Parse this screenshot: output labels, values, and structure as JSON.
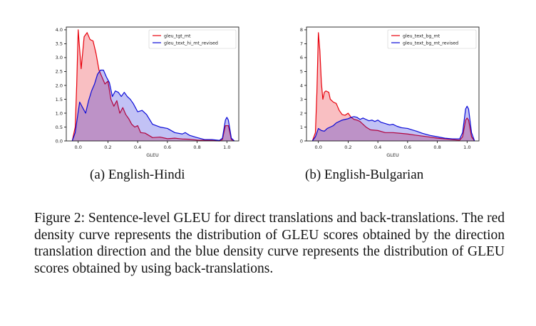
{
  "chart_data": [
    {
      "type": "area",
      "title": "",
      "xlabel": "GLEU",
      "ylabel": "",
      "xlim": [
        -0.08,
        1.08
      ],
      "ylim": [
        0,
        4.1
      ],
      "xticks": [
        0.0,
        0.2,
        0.4,
        0.6,
        0.8,
        1.0
      ],
      "xtick_labels": [
        "0.0",
        "0.2",
        "0.4",
        "0.6",
        "0.8",
        "1.0"
      ],
      "yticks": [
        0.0,
        0.5,
        1.0,
        1.5,
        2.0,
        2.5,
        3.0,
        3.5,
        4.0
      ],
      "ytick_labels": [
        "0.0",
        "0.5",
        "1.0",
        "1.5",
        "2.0",
        "2.5",
        "3.0",
        "3.5",
        "4.0"
      ],
      "grid": false,
      "legend_position": "top-right",
      "series": [
        {
          "name": "gleu_tgt_mt",
          "color": "#e8000b",
          "points": [
            [
              -0.04,
              0.0
            ],
            [
              -0.02,
              0.5
            ],
            [
              -0.01,
              2.0
            ],
            [
              0.0,
              4.0
            ],
            [
              0.02,
              2.6
            ],
            [
              0.04,
              3.75
            ],
            [
              0.06,
              3.9
            ],
            [
              0.08,
              3.65
            ],
            [
              0.1,
              3.6
            ],
            [
              0.12,
              3.15
            ],
            [
              0.14,
              2.55
            ],
            [
              0.16,
              2.3
            ],
            [
              0.18,
              2.05
            ],
            [
              0.2,
              2.15
            ],
            [
              0.22,
              1.5
            ],
            [
              0.24,
              1.25
            ],
            [
              0.26,
              1.45
            ],
            [
              0.28,
              1.0
            ],
            [
              0.3,
              1.2
            ],
            [
              0.32,
              0.95
            ],
            [
              0.34,
              0.8
            ],
            [
              0.36,
              0.6
            ],
            [
              0.38,
              0.5
            ],
            [
              0.4,
              0.55
            ],
            [
              0.42,
              0.3
            ],
            [
              0.45,
              0.28
            ],
            [
              0.5,
              0.12
            ],
            [
              0.55,
              0.14
            ],
            [
              0.6,
              0.08
            ],
            [
              0.65,
              0.1
            ],
            [
              0.7,
              0.07
            ],
            [
              0.75,
              0.06
            ],
            [
              0.8,
              0.03
            ],
            [
              0.9,
              0.02
            ],
            [
              0.95,
              0.0
            ],
            [
              0.97,
              0.05
            ],
            [
              0.99,
              0.55
            ],
            [
              1.0,
              0.55
            ],
            [
              1.01,
              0.55
            ],
            [
              1.03,
              0.05
            ],
            [
              1.05,
              0.0
            ]
          ]
        },
        {
          "name": "gleu_text_hi_mt_revised",
          "color": "#0a0ad8",
          "points": [
            [
              -0.04,
              0.0
            ],
            [
              -0.02,
              0.3
            ],
            [
              0.0,
              1.05
            ],
            [
              0.01,
              1.4
            ],
            [
              0.03,
              1.2
            ],
            [
              0.05,
              1.0
            ],
            [
              0.07,
              1.45
            ],
            [
              0.09,
              1.8
            ],
            [
              0.11,
              2.05
            ],
            [
              0.13,
              2.4
            ],
            [
              0.15,
              2.55
            ],
            [
              0.17,
              2.55
            ],
            [
              0.19,
              2.3
            ],
            [
              0.21,
              2.1
            ],
            [
              0.23,
              1.6
            ],
            [
              0.25,
              1.8
            ],
            [
              0.27,
              1.75
            ],
            [
              0.29,
              1.6
            ],
            [
              0.31,
              1.75
            ],
            [
              0.33,
              1.6
            ],
            [
              0.35,
              1.5
            ],
            [
              0.37,
              1.35
            ],
            [
              0.4,
              1.05
            ],
            [
              0.43,
              1.1
            ],
            [
              0.46,
              0.95
            ],
            [
              0.5,
              0.6
            ],
            [
              0.55,
              0.5
            ],
            [
              0.6,
              0.45
            ],
            [
              0.65,
              0.3
            ],
            [
              0.7,
              0.25
            ],
            [
              0.72,
              0.3
            ],
            [
              0.75,
              0.2
            ],
            [
              0.8,
              0.12
            ],
            [
              0.85,
              0.05
            ],
            [
              0.9,
              0.05
            ],
            [
              0.95,
              0.02
            ],
            [
              0.97,
              0.1
            ],
            [
              0.99,
              0.75
            ],
            [
              1.0,
              0.85
            ],
            [
              1.01,
              0.75
            ],
            [
              1.03,
              0.1
            ],
            [
              1.05,
              0.0
            ]
          ]
        }
      ]
    },
    {
      "type": "area",
      "title": "",
      "xlabel": "GLEU",
      "ylabel": "",
      "xlim": [
        -0.08,
        1.08
      ],
      "ylim": [
        0,
        8.2
      ],
      "xticks": [
        0.0,
        0.2,
        0.4,
        0.6,
        0.8,
        1.0
      ],
      "xtick_labels": [
        "0.0",
        "0.2",
        "0.4",
        "0.6",
        "0.8",
        "1.0"
      ],
      "yticks": [
        0,
        1,
        2,
        3,
        4,
        5,
        6,
        7,
        8
      ],
      "ytick_labels": [
        "0",
        "1",
        "2",
        "3",
        "4",
        "5",
        "6",
        "7",
        "8"
      ],
      "grid": false,
      "legend_position": "top-right",
      "series": [
        {
          "name": "gleu_text_bg_mt",
          "color": "#e8000b",
          "points": [
            [
              -0.04,
              0.0
            ],
            [
              -0.02,
              0.6
            ],
            [
              -0.01,
              3.5
            ],
            [
              0.0,
              7.8
            ],
            [
              0.01,
              6.5
            ],
            [
              0.02,
              4.2
            ],
            [
              0.03,
              3.0
            ],
            [
              0.04,
              3.5
            ],
            [
              0.05,
              3.6
            ],
            [
              0.07,
              3.5
            ],
            [
              0.08,
              3.0
            ],
            [
              0.1,
              2.8
            ],
            [
              0.12,
              2.7
            ],
            [
              0.14,
              2.2
            ],
            [
              0.16,
              1.9
            ],
            [
              0.18,
              1.85
            ],
            [
              0.2,
              2.0
            ],
            [
              0.22,
              1.7
            ],
            [
              0.24,
              1.55
            ],
            [
              0.26,
              1.5
            ],
            [
              0.28,
              1.4
            ],
            [
              0.3,
              1.2
            ],
            [
              0.32,
              1.0
            ],
            [
              0.35,
              0.8
            ],
            [
              0.4,
              0.75
            ],
            [
              0.45,
              0.6
            ],
            [
              0.5,
              0.6
            ],
            [
              0.55,
              0.55
            ],
            [
              0.6,
              0.5
            ],
            [
              0.65,
              0.42
            ],
            [
              0.7,
              0.35
            ],
            [
              0.75,
              0.28
            ],
            [
              0.8,
              0.2
            ],
            [
              0.85,
              0.15
            ],
            [
              0.9,
              0.1
            ],
            [
              0.95,
              0.05
            ],
            [
              0.97,
              0.3
            ],
            [
              0.99,
              1.5
            ],
            [
              1.0,
              1.65
            ],
            [
              1.01,
              1.5
            ],
            [
              1.03,
              0.3
            ],
            [
              1.05,
              0.0
            ]
          ]
        },
        {
          "name": "gleu_text_bg_mt_revised",
          "color": "#0a0ad8",
          "points": [
            [
              -0.04,
              0.0
            ],
            [
              -0.02,
              0.3
            ],
            [
              0.0,
              0.9
            ],
            [
              0.02,
              0.75
            ],
            [
              0.04,
              0.7
            ],
            [
              0.06,
              0.9
            ],
            [
              0.08,
              1.0
            ],
            [
              0.1,
              1.1
            ],
            [
              0.12,
              1.3
            ],
            [
              0.14,
              1.4
            ],
            [
              0.16,
              1.5
            ],
            [
              0.18,
              1.55
            ],
            [
              0.2,
              1.6
            ],
            [
              0.22,
              1.7
            ],
            [
              0.24,
              1.75
            ],
            [
              0.26,
              1.7
            ],
            [
              0.28,
              1.55
            ],
            [
              0.3,
              1.65
            ],
            [
              0.32,
              1.55
            ],
            [
              0.34,
              1.45
            ],
            [
              0.36,
              1.5
            ],
            [
              0.38,
              1.4
            ],
            [
              0.4,
              1.5
            ],
            [
              0.42,
              1.35
            ],
            [
              0.45,
              1.25
            ],
            [
              0.48,
              1.15
            ],
            [
              0.5,
              1.2
            ],
            [
              0.53,
              1.05
            ],
            [
              0.56,
              0.95
            ],
            [
              0.6,
              0.9
            ],
            [
              0.63,
              0.8
            ],
            [
              0.66,
              0.7
            ],
            [
              0.7,
              0.55
            ],
            [
              0.75,
              0.4
            ],
            [
              0.8,
              0.3
            ],
            [
              0.85,
              0.2
            ],
            [
              0.9,
              0.15
            ],
            [
              0.95,
              0.15
            ],
            [
              0.97,
              0.6
            ],
            [
              0.99,
              2.3
            ],
            [
              1.0,
              2.5
            ],
            [
              1.01,
              2.3
            ],
            [
              1.03,
              0.6
            ],
            [
              1.05,
              0.0
            ]
          ]
        }
      ]
    }
  ],
  "subcaptions": {
    "a": "(a) English-Hindi",
    "b": "(b) English-Bulgarian"
  },
  "figure_caption": "Figure 2: Sentence-level GLEU for direct translations and back-translations. The red density curve represents the distribution of GLEU scores obtained by the direction translation direction and the blue density curve represents the distribution of GLEU scores obtained by using back-translations."
}
